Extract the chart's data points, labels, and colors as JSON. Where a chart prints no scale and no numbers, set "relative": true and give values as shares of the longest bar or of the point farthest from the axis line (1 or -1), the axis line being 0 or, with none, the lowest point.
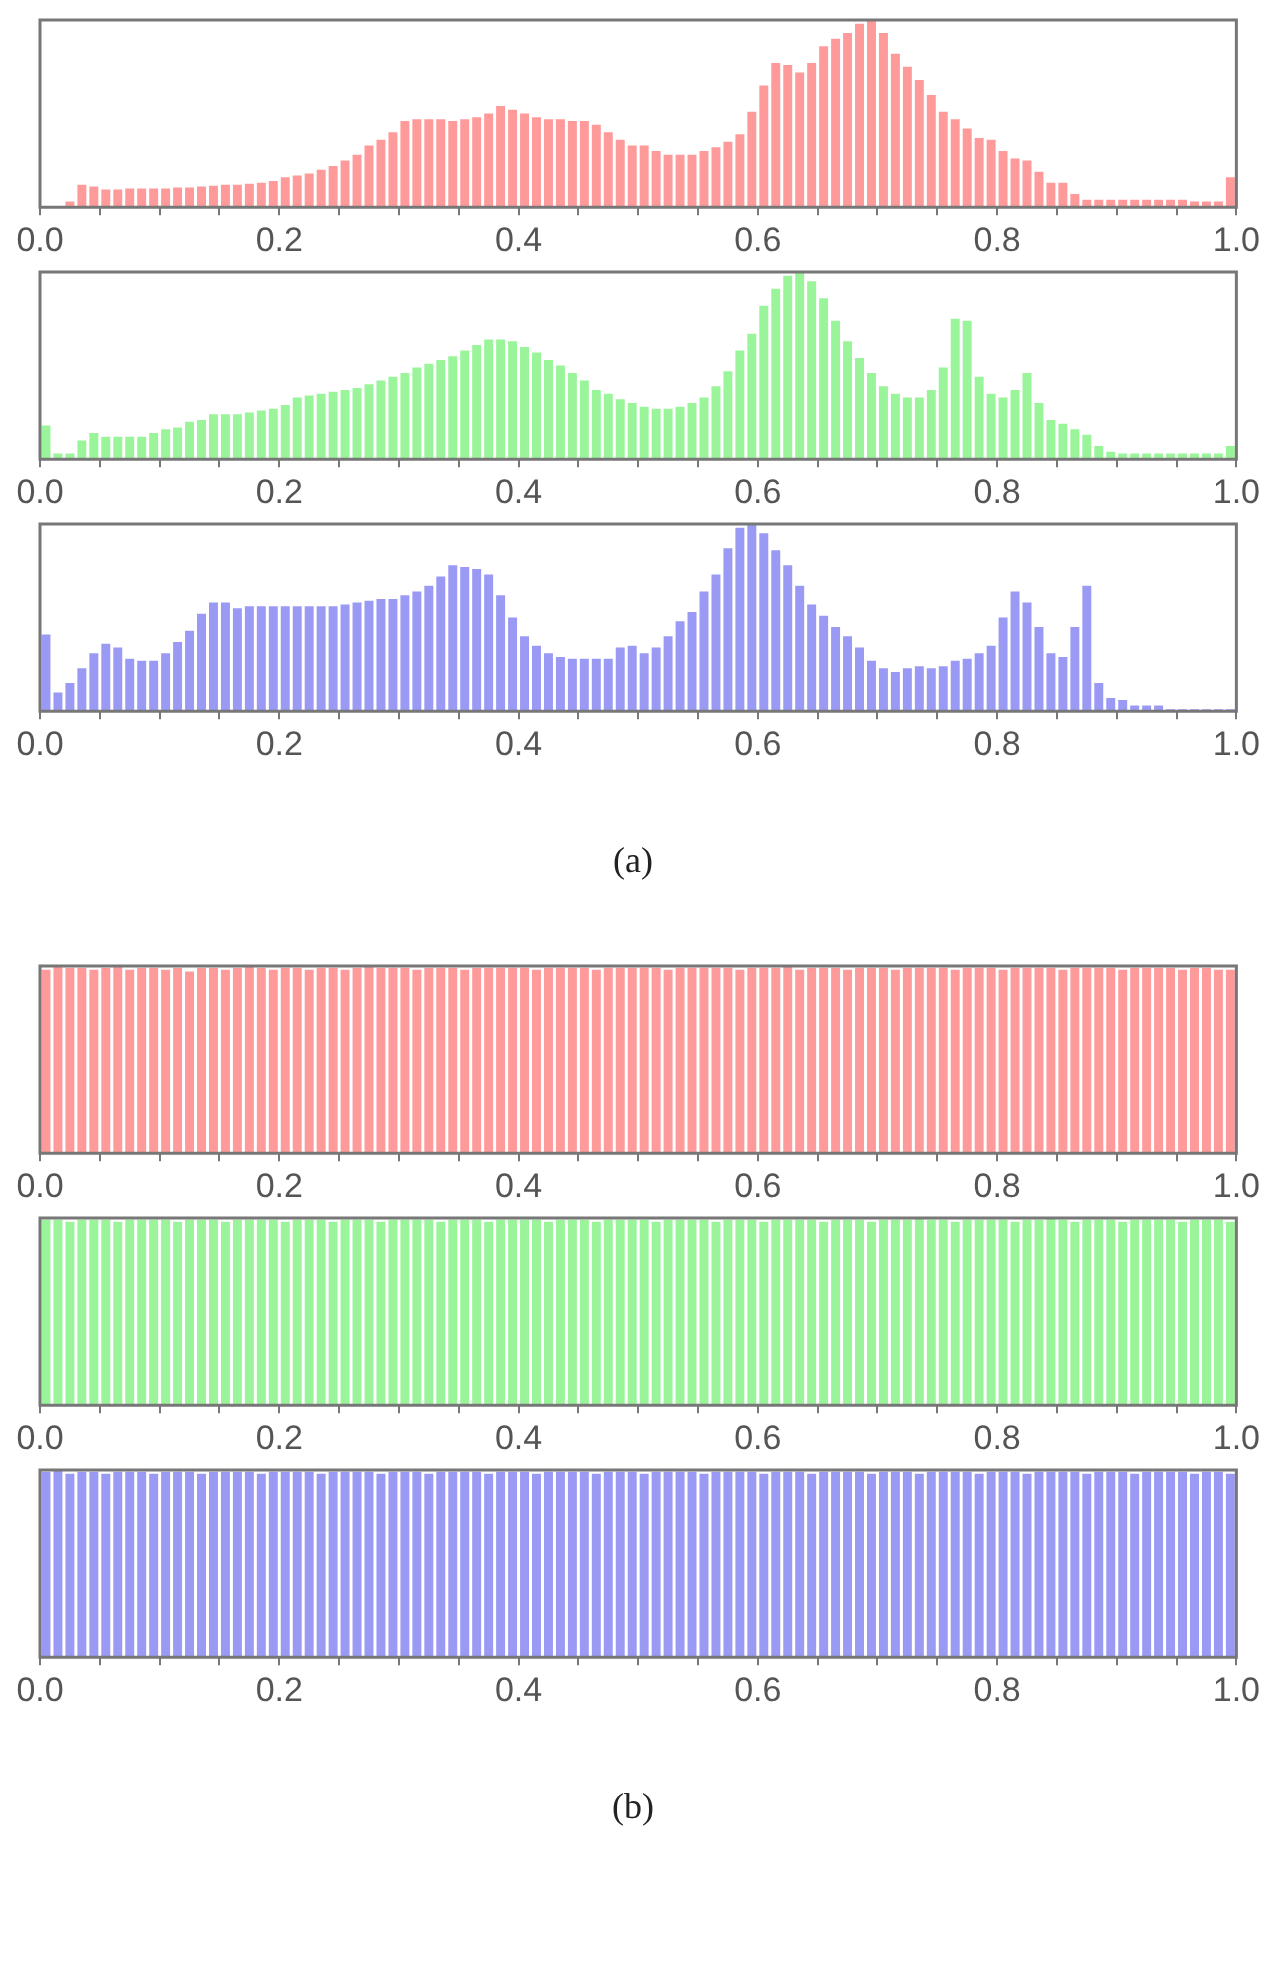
{
  "chart_data": [
    {
      "type": "bar",
      "relative": true,
      "color": "#ff9a9a",
      "xlim": [
        0,
        1
      ],
      "xticks": [
        {
          "value": 0,
          "label": "0.0"
        },
        {
          "value": 0.05,
          "label": null
        },
        {
          "value": 0.1,
          "label": null
        },
        {
          "value": 0.15,
          "label": null
        },
        {
          "value": 0.2,
          "label": "0.2"
        },
        {
          "value": 0.25,
          "label": null
        },
        {
          "value": 0.3,
          "label": null
        },
        {
          "value": 0.35,
          "label": null
        },
        {
          "value": 0.4,
          "label": "0.4"
        },
        {
          "value": 0.45,
          "label": null
        },
        {
          "value": 0.5,
          "label": null
        },
        {
          "value": 0.55,
          "label": null
        },
        {
          "value": 0.6,
          "label": "0.6"
        },
        {
          "value": 0.65,
          "label": null
        },
        {
          "value": 0.7,
          "label": null
        },
        {
          "value": 0.75,
          "label": null
        },
        {
          "value": 0.8,
          "label": "0.8"
        },
        {
          "value": 0.85,
          "label": null
        },
        {
          "value": 0.9,
          "label": null
        },
        {
          "value": 0.95,
          "label": null
        },
        {
          "value": 1,
          "label": "1.0"
        }
      ],
      "x": [
        0.005,
        0.015,
        0.025,
        0.035,
        0.045,
        0.055,
        0.065,
        0.075,
        0.085,
        0.095,
        0.105,
        0.115,
        0.125,
        0.135,
        0.145,
        0.155,
        0.165,
        0.175,
        0.185,
        0.195,
        0.205,
        0.215,
        0.225,
        0.235,
        0.245,
        0.255,
        0.265,
        0.275,
        0.285,
        0.295,
        0.305,
        0.315,
        0.325,
        0.335,
        0.345,
        0.355,
        0.365,
        0.375,
        0.385,
        0.395,
        0.405,
        0.415,
        0.425,
        0.435,
        0.445,
        0.455,
        0.465,
        0.475,
        0.485,
        0.495,
        0.505,
        0.515,
        0.525,
        0.535,
        0.545,
        0.555,
        0.565,
        0.575,
        0.585,
        0.595,
        0.605,
        0.615,
        0.625,
        0.635,
        0.645,
        0.655,
        0.665,
        0.675,
        0.685,
        0.695,
        0.705,
        0.715,
        0.725,
        0.735,
        0.745,
        0.755,
        0.765,
        0.775,
        0.785,
        0.795,
        0.805,
        0.815,
        0.825,
        0.835,
        0.845,
        0.855,
        0.865,
        0.875,
        0.885,
        0.895,
        0.905,
        0.915,
        0.925,
        0.935,
        0.945,
        0.955,
        0.965,
        0.975,
        0.985,
        0.995
      ],
      "values": [
        0,
        0,
        0.03,
        0.12,
        0.11,
        0.095,
        0.095,
        0.1,
        0.1,
        0.1,
        0.1,
        0.105,
        0.105,
        0.11,
        0.115,
        0.12,
        0.12,
        0.125,
        0.13,
        0.14,
        0.16,
        0.17,
        0.18,
        0.2,
        0.22,
        0.25,
        0.28,
        0.33,
        0.36,
        0.4,
        0.46,
        0.47,
        0.47,
        0.47,
        0.46,
        0.47,
        0.48,
        0.5,
        0.54,
        0.52,
        0.5,
        0.48,
        0.47,
        0.47,
        0.46,
        0.46,
        0.44,
        0.4,
        0.36,
        0.33,
        0.33,
        0.3,
        0.28,
        0.28,
        0.28,
        0.3,
        0.32,
        0.35,
        0.39,
        0.51,
        0.65,
        0.77,
        0.76,
        0.72,
        0.77,
        0.86,
        0.9,
        0.93,
        0.98,
        1,
        0.93,
        0.82,
        0.75,
        0.68,
        0.6,
        0.51,
        0.47,
        0.42,
        0.37,
        0.36,
        0.3,
        0.26,
        0.25,
        0.19,
        0.13,
        0.13,
        0.07,
        0.04,
        0.04,
        0.04,
        0.04,
        0.04,
        0.04,
        0.04,
        0.04,
        0.04,
        0.03,
        0.03,
        0.03,
        0.16
      ]
    },
    {
      "type": "bar",
      "relative": true,
      "color": "#9af59a",
      "xlim": [
        0,
        1
      ],
      "xticks": [
        {
          "value": 0,
          "label": "0.0"
        },
        {
          "value": 0.05,
          "label": null
        },
        {
          "value": 0.1,
          "label": null
        },
        {
          "value": 0.15,
          "label": null
        },
        {
          "value": 0.2,
          "label": "0.2"
        },
        {
          "value": 0.25,
          "label": null
        },
        {
          "value": 0.3,
          "label": null
        },
        {
          "value": 0.35,
          "label": null
        },
        {
          "value": 0.4,
          "label": "0.4"
        },
        {
          "value": 0.45,
          "label": null
        },
        {
          "value": 0.5,
          "label": null
        },
        {
          "value": 0.55,
          "label": null
        },
        {
          "value": 0.6,
          "label": "0.6"
        },
        {
          "value": 0.65,
          "label": null
        },
        {
          "value": 0.7,
          "label": null
        },
        {
          "value": 0.75,
          "label": null
        },
        {
          "value": 0.8,
          "label": "0.8"
        },
        {
          "value": 0.85,
          "label": null
        },
        {
          "value": 0.9,
          "label": null
        },
        {
          "value": 0.95,
          "label": null
        },
        {
          "value": 1,
          "label": "1.0"
        }
      ],
      "x": [
        0.005,
        0.015,
        0.025,
        0.035,
        0.045,
        0.055,
        0.065,
        0.075,
        0.085,
        0.095,
        0.105,
        0.115,
        0.125,
        0.135,
        0.145,
        0.155,
        0.165,
        0.175,
        0.185,
        0.195,
        0.205,
        0.215,
        0.225,
        0.235,
        0.245,
        0.255,
        0.265,
        0.275,
        0.285,
        0.295,
        0.305,
        0.315,
        0.325,
        0.335,
        0.345,
        0.355,
        0.365,
        0.375,
        0.385,
        0.395,
        0.405,
        0.415,
        0.425,
        0.435,
        0.445,
        0.455,
        0.465,
        0.475,
        0.485,
        0.495,
        0.505,
        0.515,
        0.525,
        0.535,
        0.545,
        0.555,
        0.565,
        0.575,
        0.585,
        0.595,
        0.605,
        0.615,
        0.625,
        0.635,
        0.645,
        0.655,
        0.665,
        0.675,
        0.685,
        0.695,
        0.705,
        0.715,
        0.725,
        0.735,
        0.745,
        0.755,
        0.765,
        0.775,
        0.785,
        0.795,
        0.805,
        0.815,
        0.825,
        0.835,
        0.845,
        0.855,
        0.865,
        0.875,
        0.885,
        0.895,
        0.905,
        0.915,
        0.925,
        0.935,
        0.945,
        0.955,
        0.965,
        0.975,
        0.985,
        0.995
      ],
      "values": [
        0.18,
        0.03,
        0.03,
        0.1,
        0.14,
        0.12,
        0.12,
        0.12,
        0.12,
        0.14,
        0.16,
        0.17,
        0.2,
        0.21,
        0.24,
        0.24,
        0.24,
        0.25,
        0.26,
        0.27,
        0.29,
        0.33,
        0.34,
        0.35,
        0.36,
        0.37,
        0.38,
        0.4,
        0.42,
        0.44,
        0.46,
        0.49,
        0.51,
        0.53,
        0.55,
        0.58,
        0.61,
        0.64,
        0.64,
        0.63,
        0.6,
        0.57,
        0.53,
        0.5,
        0.46,
        0.42,
        0.37,
        0.35,
        0.32,
        0.3,
        0.28,
        0.27,
        0.27,
        0.28,
        0.3,
        0.33,
        0.39,
        0.47,
        0.58,
        0.67,
        0.82,
        0.91,
        0.98,
        1,
        0.95,
        0.86,
        0.74,
        0.63,
        0.54,
        0.46,
        0.39,
        0.35,
        0.33,
        0.33,
        0.37,
        0.49,
        0.75,
        0.74,
        0.44,
        0.35,
        0.33,
        0.37,
        0.46,
        0.3,
        0.21,
        0.19,
        0.16,
        0.13,
        0.07,
        0.04,
        0.03,
        0.03,
        0.03,
        0.03,
        0.03,
        0.03,
        0.03,
        0.03,
        0.03,
        0.07
      ]
    },
    {
      "type": "bar",
      "relative": true,
      "color": "#9a9af5",
      "xlim": [
        0,
        1
      ],
      "annotations": [
        "(a)"
      ],
      "xticks": [
        {
          "value": 0,
          "label": "0.0"
        },
        {
          "value": 0.05,
          "label": null
        },
        {
          "value": 0.1,
          "label": null
        },
        {
          "value": 0.15,
          "label": null
        },
        {
          "value": 0.2,
          "label": "0.2"
        },
        {
          "value": 0.25,
          "label": null
        },
        {
          "value": 0.3,
          "label": null
        },
        {
          "value": 0.35,
          "label": null
        },
        {
          "value": 0.4,
          "label": "0.4"
        },
        {
          "value": 0.45,
          "label": null
        },
        {
          "value": 0.5,
          "label": null
        },
        {
          "value": 0.55,
          "label": null
        },
        {
          "value": 0.6,
          "label": "0.6"
        },
        {
          "value": 0.65,
          "label": null
        },
        {
          "value": 0.7,
          "label": null
        },
        {
          "value": 0.75,
          "label": null
        },
        {
          "value": 0.8,
          "label": "0.8"
        },
        {
          "value": 0.85,
          "label": null
        },
        {
          "value": 0.9,
          "label": null
        },
        {
          "value": 0.95,
          "label": null
        },
        {
          "value": 1,
          "label": "1.0"
        }
      ],
      "x": [
        0.005,
        0.015,
        0.025,
        0.035,
        0.045,
        0.055,
        0.065,
        0.075,
        0.085,
        0.095,
        0.105,
        0.115,
        0.125,
        0.135,
        0.145,
        0.155,
        0.165,
        0.175,
        0.185,
        0.195,
        0.205,
        0.215,
        0.225,
        0.235,
        0.245,
        0.255,
        0.265,
        0.275,
        0.285,
        0.295,
        0.305,
        0.315,
        0.325,
        0.335,
        0.345,
        0.355,
        0.365,
        0.375,
        0.385,
        0.395,
        0.405,
        0.415,
        0.425,
        0.435,
        0.445,
        0.455,
        0.465,
        0.475,
        0.485,
        0.495,
        0.505,
        0.515,
        0.525,
        0.535,
        0.545,
        0.555,
        0.565,
        0.575,
        0.585,
        0.595,
        0.605,
        0.615,
        0.625,
        0.635,
        0.645,
        0.655,
        0.665,
        0.675,
        0.685,
        0.695,
        0.705,
        0.715,
        0.725,
        0.735,
        0.745,
        0.755,
        0.765,
        0.775,
        0.785,
        0.795,
        0.805,
        0.815,
        0.825,
        0.835,
        0.845,
        0.855,
        0.865,
        0.875,
        0.885,
        0.895,
        0.905,
        0.915,
        0.925,
        0.935,
        0.945,
        0.955,
        0.965,
        0.975,
        0.985,
        0.995
      ],
      "values": [
        0.41,
        0.1,
        0.15,
        0.23,
        0.31,
        0.36,
        0.34,
        0.28,
        0.27,
        0.27,
        0.31,
        0.37,
        0.43,
        0.52,
        0.58,
        0.58,
        0.55,
        0.56,
        0.56,
        0.56,
        0.56,
        0.56,
        0.56,
        0.56,
        0.56,
        0.57,
        0.58,
        0.59,
        0.6,
        0.6,
        0.62,
        0.64,
        0.67,
        0.72,
        0.78,
        0.77,
        0.76,
        0.73,
        0.62,
        0.5,
        0.4,
        0.35,
        0.31,
        0.29,
        0.28,
        0.28,
        0.28,
        0.28,
        0.34,
        0.35,
        0.31,
        0.34,
        0.4,
        0.48,
        0.53,
        0.64,
        0.73,
        0.87,
        0.98,
        1,
        0.95,
        0.86,
        0.78,
        0.67,
        0.57,
        0.51,
        0.45,
        0.4,
        0.34,
        0.27,
        0.23,
        0.21,
        0.23,
        0.24,
        0.23,
        0.24,
        0.27,
        0.28,
        0.31,
        0.35,
        0.5,
        0.64,
        0.58,
        0.45,
        0.31,
        0.29,
        0.45,
        0.67,
        0.15,
        0.07,
        0.06,
        0.03,
        0.03,
        0.03,
        0.01,
        0.01,
        0.01,
        0.01,
        0.01,
        0.01
      ]
    },
    {
      "type": "bar",
      "relative": true,
      "color": "#ff9a9a",
      "xlim": [
        0,
        1
      ],
      "xticks": [
        {
          "value": 0,
          "label": "0.0"
        },
        {
          "value": 0.05,
          "label": null
        },
        {
          "value": 0.1,
          "label": null
        },
        {
          "value": 0.15,
          "label": null
        },
        {
          "value": 0.2,
          "label": "0.2"
        },
        {
          "value": 0.25,
          "label": null
        },
        {
          "value": 0.3,
          "label": null
        },
        {
          "value": 0.35,
          "label": null
        },
        {
          "value": 0.4,
          "label": "0.4"
        },
        {
          "value": 0.45,
          "label": null
        },
        {
          "value": 0.5,
          "label": null
        },
        {
          "value": 0.55,
          "label": null
        },
        {
          "value": 0.6,
          "label": "0.6"
        },
        {
          "value": 0.65,
          "label": null
        },
        {
          "value": 0.7,
          "label": null
        },
        {
          "value": 0.75,
          "label": null
        },
        {
          "value": 0.8,
          "label": "0.8"
        },
        {
          "value": 0.85,
          "label": null
        },
        {
          "value": 0.9,
          "label": null
        },
        {
          "value": 0.95,
          "label": null
        },
        {
          "value": 1,
          "label": "1.0"
        }
      ],
      "x": [
        0.005,
        0.015,
        0.025,
        0.035,
        0.045,
        0.055,
        0.065,
        0.075,
        0.085,
        0.095,
        0.105,
        0.115,
        0.125,
        0.135,
        0.145,
        0.155,
        0.165,
        0.175,
        0.185,
        0.195,
        0.205,
        0.215,
        0.225,
        0.235,
        0.245,
        0.255,
        0.265,
        0.275,
        0.285,
        0.295,
        0.305,
        0.315,
        0.325,
        0.335,
        0.345,
        0.355,
        0.365,
        0.375,
        0.385,
        0.395,
        0.405,
        0.415,
        0.425,
        0.435,
        0.445,
        0.455,
        0.465,
        0.475,
        0.485,
        0.495,
        0.505,
        0.515,
        0.525,
        0.535,
        0.545,
        0.555,
        0.565,
        0.575,
        0.585,
        0.595,
        0.605,
        0.615,
        0.625,
        0.635,
        0.645,
        0.655,
        0.665,
        0.675,
        0.685,
        0.695,
        0.705,
        0.715,
        0.725,
        0.735,
        0.745,
        0.755,
        0.765,
        0.775,
        0.785,
        0.795,
        0.805,
        0.815,
        0.825,
        0.835,
        0.845,
        0.855,
        0.865,
        0.875,
        0.885,
        0.895,
        0.905,
        0.915,
        0.925,
        0.935,
        0.945,
        0.955,
        0.965,
        0.975,
        0.985,
        0.995
      ],
      "values": [
        0.98,
        1,
        0.99,
        0.99,
        0.98,
        0.99,
        1,
        0.98,
        0.99,
        0.99,
        0.98,
        0.99,
        0.97,
        0.99,
        0.99,
        0.98,
        0.99,
        1,
        0.99,
        0.98,
        0.99,
        0.99,
        0.98,
        0.99,
        0.99,
        0.98,
        0.99,
        1,
        0.99,
        0.99,
        0.99,
        0.98,
        0.99,
        0.99,
        0.99,
        0.98,
        0.99,
        0.99,
        0.99,
        0.99,
        0.99,
        0.98,
        0.99,
        0.99,
        0.99,
        0.99,
        0.98,
        0.99,
        0.99,
        0.99,
        0.99,
        0.99,
        0.98,
        0.99,
        0.99,
        0.99,
        0.99,
        0.99,
        0.98,
        0.99,
        0.99,
        0.99,
        1,
        0.98,
        0.99,
        0.99,
        0.99,
        0.98,
        0.99,
        0.99,
        0.99,
        0.98,
        0.99,
        0.99,
        0.99,
        0.99,
        0.98,
        0.99,
        0.99,
        0.99,
        0.98,
        0.99,
        0.99,
        0.99,
        0.99,
        0.98,
        0.99,
        0.99,
        0.99,
        0.99,
        0.98,
        0.99,
        0.99,
        0.99,
        0.99,
        0.98,
        0.99,
        0.99,
        0.98,
        0.98
      ]
    },
    {
      "type": "bar",
      "relative": true,
      "color": "#9af59a",
      "xlim": [
        0,
        1
      ],
      "xticks": [
        {
          "value": 0,
          "label": "0.0"
        },
        {
          "value": 0.05,
          "label": null
        },
        {
          "value": 0.1,
          "label": null
        },
        {
          "value": 0.15,
          "label": null
        },
        {
          "value": 0.2,
          "label": "0.2"
        },
        {
          "value": 0.25,
          "label": null
        },
        {
          "value": 0.3,
          "label": null
        },
        {
          "value": 0.35,
          "label": null
        },
        {
          "value": 0.4,
          "label": "0.4"
        },
        {
          "value": 0.45,
          "label": null
        },
        {
          "value": 0.5,
          "label": null
        },
        {
          "value": 0.55,
          "label": null
        },
        {
          "value": 0.6,
          "label": "0.6"
        },
        {
          "value": 0.65,
          "label": null
        },
        {
          "value": 0.7,
          "label": null
        },
        {
          "value": 0.75,
          "label": null
        },
        {
          "value": 0.8,
          "label": "0.8"
        },
        {
          "value": 0.85,
          "label": null
        },
        {
          "value": 0.9,
          "label": null
        },
        {
          "value": 0.95,
          "label": null
        },
        {
          "value": 1,
          "label": "1.0"
        }
      ],
      "x": [
        0.005,
        0.015,
        0.025,
        0.035,
        0.045,
        0.055,
        0.065,
        0.075,
        0.085,
        0.095,
        0.105,
        0.115,
        0.125,
        0.135,
        0.145,
        0.155,
        0.165,
        0.175,
        0.185,
        0.195,
        0.205,
        0.215,
        0.225,
        0.235,
        0.245,
        0.255,
        0.265,
        0.275,
        0.285,
        0.295,
        0.305,
        0.315,
        0.325,
        0.335,
        0.345,
        0.355,
        0.365,
        0.375,
        0.385,
        0.395,
        0.405,
        0.415,
        0.425,
        0.435,
        0.445,
        0.455,
        0.465,
        0.475,
        0.485,
        0.495,
        0.505,
        0.515,
        0.525,
        0.535,
        0.545,
        0.555,
        0.565,
        0.575,
        0.585,
        0.595,
        0.605,
        0.615,
        0.625,
        0.635,
        0.645,
        0.655,
        0.665,
        0.675,
        0.685,
        0.695,
        0.705,
        0.715,
        0.725,
        0.735,
        0.745,
        0.755,
        0.765,
        0.775,
        0.785,
        0.795,
        0.805,
        0.815,
        0.825,
        0.835,
        0.845,
        0.855,
        0.865,
        0.875,
        0.885,
        0.895,
        0.905,
        0.915,
        0.925,
        0.935,
        0.945,
        0.955,
        0.965,
        0.975,
        0.985,
        0.995
      ],
      "values": [
        0.99,
        0.99,
        0.98,
        0.99,
        0.99,
        0.99,
        0.98,
        0.99,
        0.99,
        0.99,
        0.99,
        0.98,
        0.99,
        0.99,
        0.99,
        0.98,
        0.99,
        0.99,
        0.99,
        0.99,
        0.98,
        0.99,
        0.99,
        0.99,
        0.98,
        0.99,
        0.99,
        0.99,
        0.98,
        0.99,
        0.99,
        0.99,
        0.99,
        0.98,
        0.99,
        0.99,
        0.99,
        0.98,
        0.99,
        0.99,
        0.99,
        0.99,
        0.98,
        0.99,
        0.99,
        0.99,
        0.98,
        0.99,
        0.99,
        0.99,
        0.99,
        0.98,
        0.99,
        0.99,
        0.99,
        0.99,
        0.98,
        0.99,
        0.99,
        0.99,
        0.98,
        0.99,
        0.99,
        0.99,
        0.99,
        0.98,
        0.99,
        0.99,
        0.99,
        0.98,
        0.99,
        0.99,
        0.99,
        1,
        0.99,
        0.99,
        0.98,
        0.99,
        0.99,
        0.99,
        0.99,
        0.98,
        0.99,
        0.99,
        1,
        0.99,
        0.98,
        0.99,
        0.99,
        0.99,
        0.98,
        0.99,
        0.99,
        0.99,
        0.99,
        0.98,
        0.99,
        0.99,
        0.99,
        0.98
      ]
    },
    {
      "type": "bar",
      "relative": true,
      "color": "#9a9af5",
      "xlim": [
        0,
        1
      ],
      "annotations": [
        "(b)"
      ],
      "xticks": [
        {
          "value": 0,
          "label": "0.0"
        },
        {
          "value": 0.05,
          "label": null
        },
        {
          "value": 0.1,
          "label": null
        },
        {
          "value": 0.15,
          "label": null
        },
        {
          "value": 0.2,
          "label": "0.2"
        },
        {
          "value": 0.25,
          "label": null
        },
        {
          "value": 0.3,
          "label": null
        },
        {
          "value": 0.35,
          "label": null
        },
        {
          "value": 0.4,
          "label": "0.4"
        },
        {
          "value": 0.45,
          "label": null
        },
        {
          "value": 0.5,
          "label": null
        },
        {
          "value": 0.55,
          "label": null
        },
        {
          "value": 0.6,
          "label": "0.6"
        },
        {
          "value": 0.65,
          "label": null
        },
        {
          "value": 0.7,
          "label": null
        },
        {
          "value": 0.75,
          "label": null
        },
        {
          "value": 0.8,
          "label": "0.8"
        },
        {
          "value": 0.85,
          "label": null
        },
        {
          "value": 0.9,
          "label": null
        },
        {
          "value": 0.95,
          "label": null
        },
        {
          "value": 1,
          "label": "1.0"
        }
      ],
      "x": [
        0.005,
        0.015,
        0.025,
        0.035,
        0.045,
        0.055,
        0.065,
        0.075,
        0.085,
        0.095,
        0.105,
        0.115,
        0.125,
        0.135,
        0.145,
        0.155,
        0.165,
        0.175,
        0.185,
        0.195,
        0.205,
        0.215,
        0.225,
        0.235,
        0.245,
        0.255,
        0.265,
        0.275,
        0.285,
        0.295,
        0.305,
        0.315,
        0.325,
        0.335,
        0.345,
        0.355,
        0.365,
        0.375,
        0.385,
        0.395,
        0.405,
        0.415,
        0.425,
        0.435,
        0.445,
        0.455,
        0.465,
        0.475,
        0.485,
        0.495,
        0.505,
        0.515,
        0.525,
        0.535,
        0.545,
        0.555,
        0.565,
        0.575,
        0.585,
        0.595,
        0.605,
        0.615,
        0.625,
        0.635,
        0.645,
        0.655,
        0.665,
        0.675,
        0.685,
        0.695,
        0.705,
        0.715,
        0.725,
        0.735,
        0.745,
        0.755,
        0.765,
        0.775,
        0.785,
        0.795,
        0.805,
        0.815,
        0.825,
        0.835,
        0.845,
        0.855,
        0.865,
        0.875,
        0.885,
        0.895,
        0.905,
        0.915,
        0.925,
        0.935,
        0.945,
        0.955,
        0.965,
        0.975,
        0.985,
        0.995
      ],
      "values": [
        0.99,
        1,
        0.98,
        0.99,
        0.99,
        0.98,
        0.99,
        0.99,
        0.99,
        0.98,
        0.99,
        0.99,
        0.99,
        0.98,
        0.99,
        0.99,
        0.99,
        0.99,
        0.98,
        0.99,
        0.99,
        0.99,
        0.99,
        0.98,
        0.99,
        0.99,
        0.99,
        0.99,
        0.98,
        0.99,
        0.99,
        0.99,
        0.98,
        0.99,
        0.99,
        0.99,
        0.99,
        0.98,
        0.99,
        0.99,
        0.99,
        0.98,
        0.99,
        0.99,
        0.99,
        0.99,
        0.98,
        0.99,
        0.99,
        0.99,
        0.98,
        0.99,
        0.99,
        0.99,
        0.99,
        0.98,
        0.99,
        0.99,
        0.99,
        0.99,
        0.98,
        0.99,
        0.99,
        0.99,
        0.98,
        0.99,
        0.99,
        0.99,
        0.99,
        0.98,
        0.99,
        0.99,
        0.99,
        0.98,
        0.99,
        0.99,
        0.99,
        0.99,
        0.98,
        0.99,
        0.99,
        0.99,
        0.98,
        0.99,
        0.99,
        0.99,
        0.99,
        0.98,
        0.99,
        0.99,
        0.99,
        0.98,
        0.99,
        0.99,
        0.99,
        0.99,
        0.98,
        0.99,
        0.99,
        0.98
      ]
    }
  ]
}
